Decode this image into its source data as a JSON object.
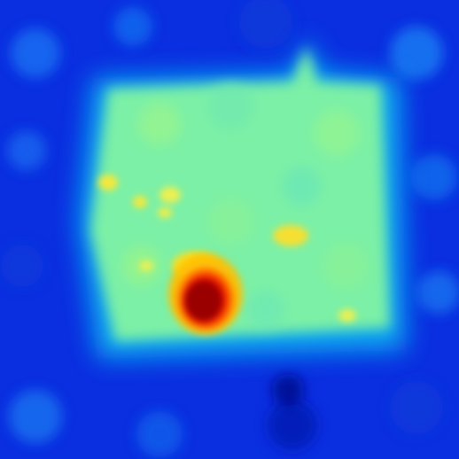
{
  "image": {
    "kind": "false-color-heatmap",
    "colormap": "jet",
    "colormap_stops": [
      "#00008f",
      "#0000ff",
      "#0080ff",
      "#00ffff",
      "#80ff80",
      "#ffff00",
      "#ff8000",
      "#ff0000",
      "#800000"
    ],
    "background_color": "#0a2fe0",
    "regions": [
      {
        "name": "outer-background",
        "level": 0.18,
        "color": "#0a2fe0"
      },
      {
        "name": "edge-halo",
        "level": 0.33,
        "color": "#0e9ff2"
      },
      {
        "name": "central-plateau",
        "level": 0.47,
        "color": "#7ff59a"
      },
      {
        "name": "warm-spots",
        "level": 0.62,
        "color": "#f3f04a"
      },
      {
        "name": "hot-spot-core",
        "level": 0.95,
        "color": "#bf0000"
      }
    ]
  }
}
